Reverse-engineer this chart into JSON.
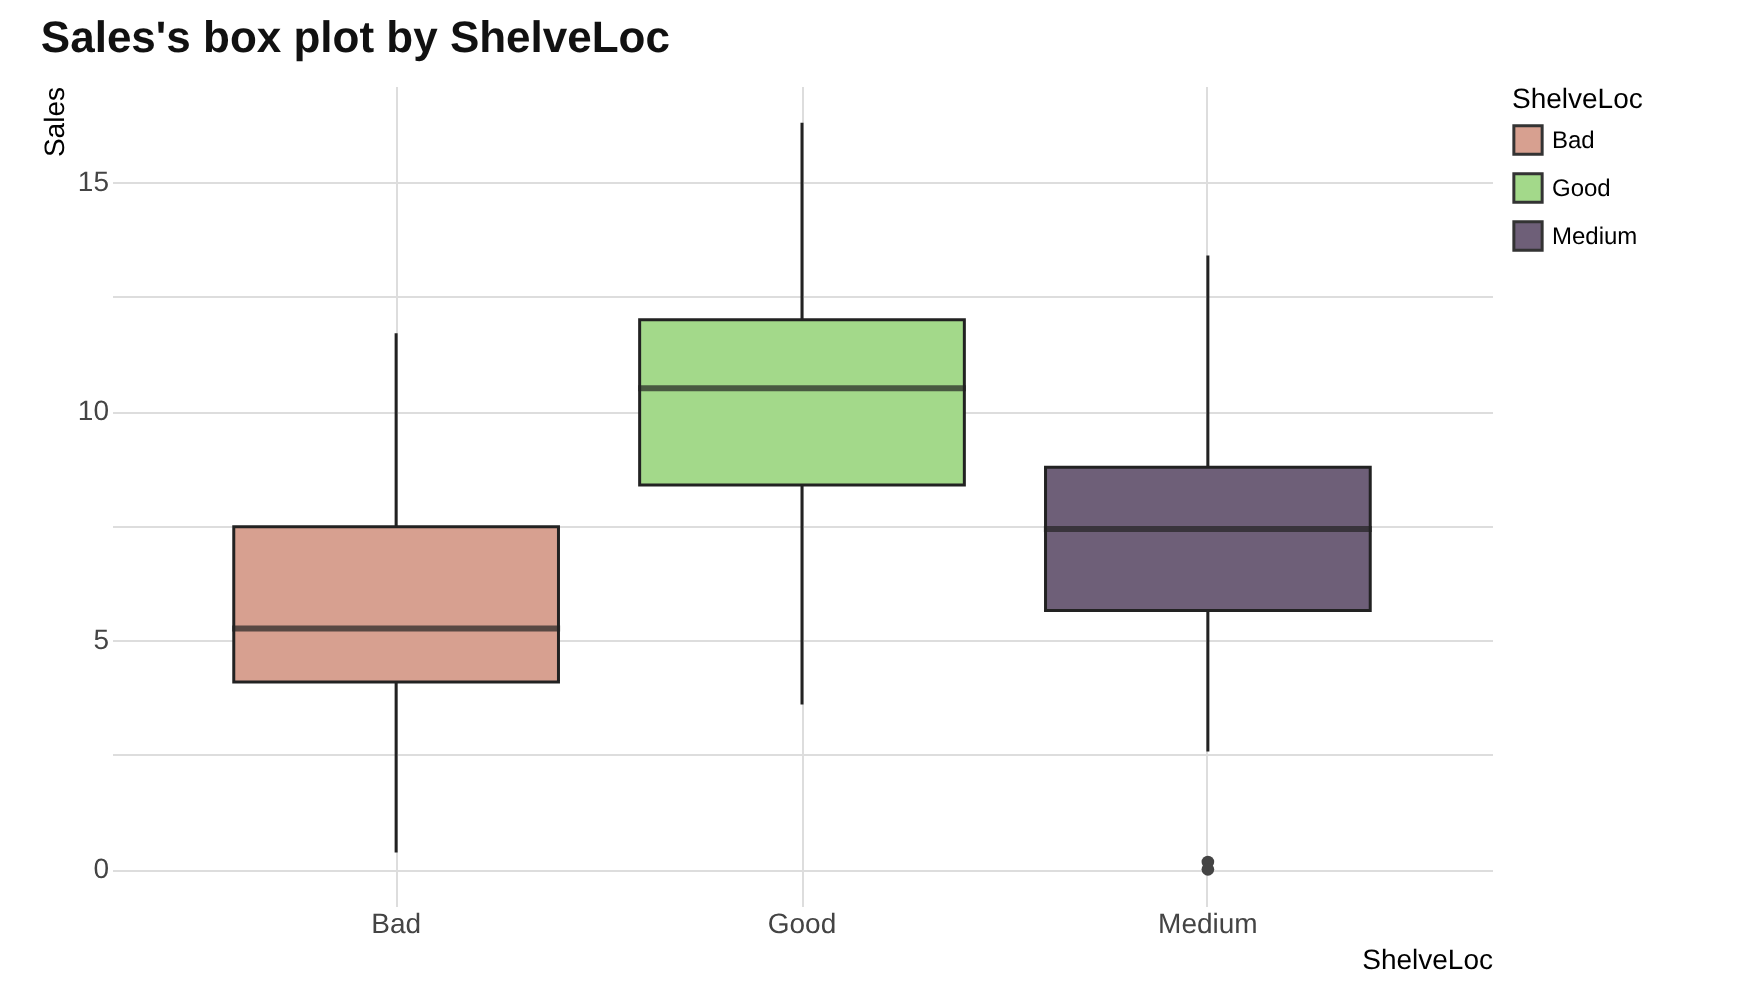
{
  "chart_data": {
    "type": "box",
    "title": "Sales's box plot by ShelveLoc",
    "xlabel": "ShelveLoc",
    "ylabel": "Sales",
    "legend_title": "ShelveLoc",
    "categories": [
      "Bad",
      "Good",
      "Medium"
    ],
    "series": [
      {
        "name": "Bad",
        "color": "#d7a090",
        "boxes": [
          {
            "low": 0.37,
            "q1": 4.09,
            "median": 5.26,
            "q3": 7.48,
            "high": 11.7
          },
          null,
          null
        ]
      },
      {
        "name": "Good",
        "color": "#a3d98a",
        "boxes": [
          null,
          {
            "low": 3.6,
            "q1": 8.39,
            "median": 10.5,
            "q3": 12.0,
            "high": 16.3
          },
          null
        ]
      },
      {
        "name": "Medium",
        "color": "#6e5f78",
        "boxes": [
          null,
          null,
          {
            "low": 2.57,
            "q1": 5.65,
            "median": 7.43,
            "q3": 8.78,
            "high": 13.4,
            "outliers": [
              0.16,
              0.0
            ]
          }
        ]
      }
    ],
    "ylim": [
      -0.8,
      17.1
    ],
    "yticks": [
      0,
      {
        "value": 2.5,
        "label": null
      },
      5,
      {
        "value": 7.5,
        "label": null
      },
      10,
      {
        "value": 12.5,
        "label": null
      },
      15
    ],
    "grid": true,
    "legend": "right"
  }
}
